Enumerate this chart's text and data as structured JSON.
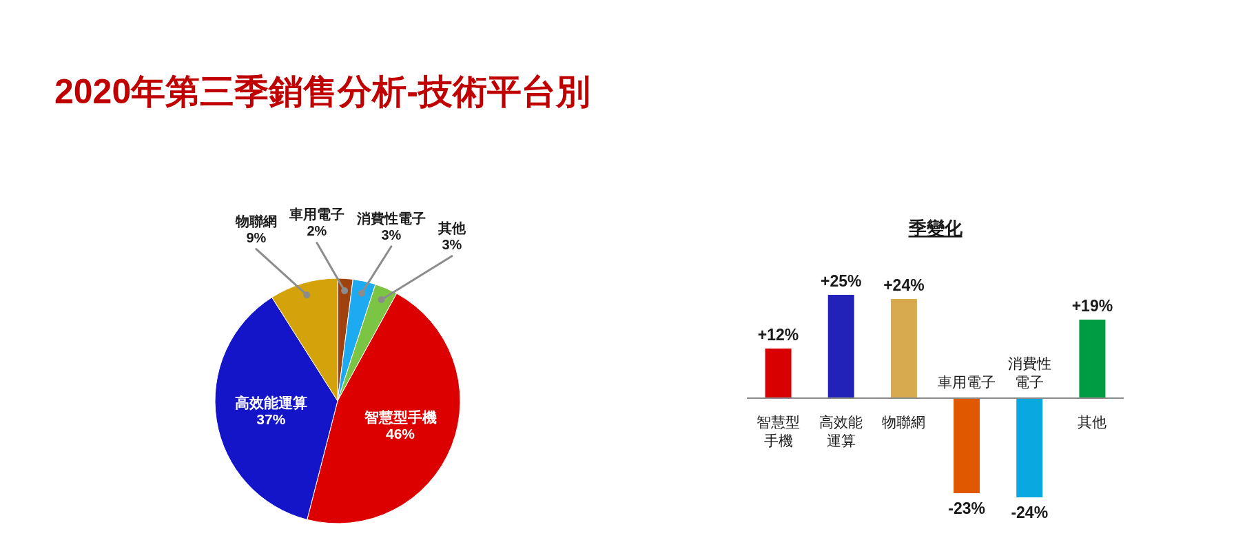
{
  "chart_data": [
    {
      "type": "pie",
      "title": "2020年第三季銷售分析-技術平台別",
      "categories": [
        "車用電子",
        "消費性電子",
        "其他",
        "智慧型手機",
        "高效能運算",
        "物聯網"
      ],
      "values": [
        2,
        3,
        3,
        46,
        37,
        9
      ],
      "colors": [
        "#a0420e",
        "#1eaaf0",
        "#7cc444",
        "#dd0000",
        "#1414c8",
        "#d4a20a"
      ],
      "value_labels": [
        "2%",
        "3%",
        "3%",
        "46%",
        "37%",
        "9%"
      ]
    },
    {
      "type": "bar",
      "title": "季變化",
      "categories": [
        "智慧型手機",
        "高效能運算",
        "物聯網",
        "車用電子",
        "消費性電子",
        "其他"
      ],
      "values": [
        12,
        25,
        24,
        -23,
        -24,
        19
      ],
      "colors": [
        "#d80000",
        "#2222b8",
        "#d8aa50",
        "#e05800",
        "#0aa8e0",
        "#009c44"
      ],
      "value_labels": [
        "+12%",
        "+25%",
        "+24%",
        "-23%",
        "-24%",
        "+19%"
      ]
    }
  ]
}
